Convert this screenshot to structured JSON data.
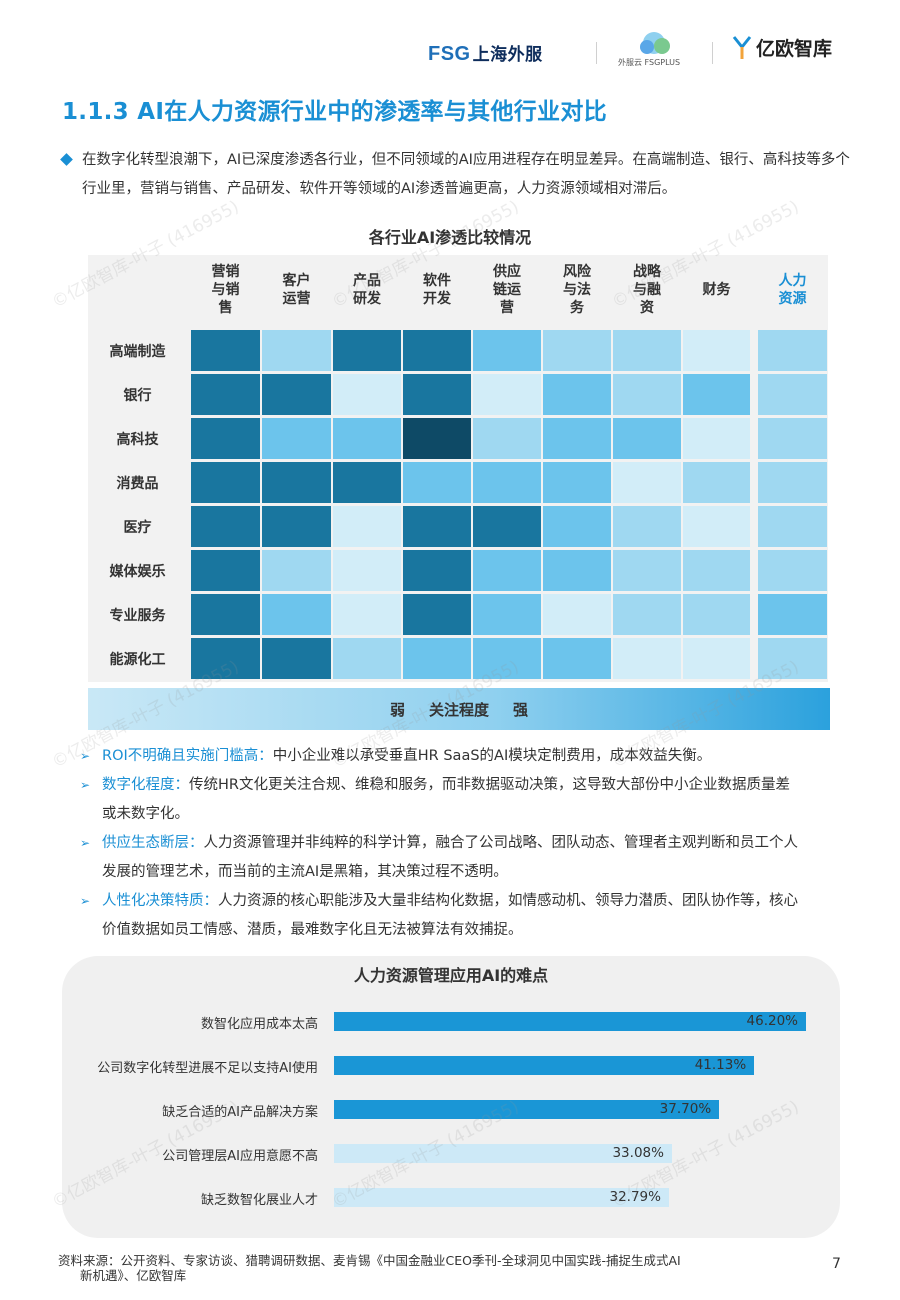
{
  "header": {
    "logo_fsg": "FSG",
    "logo_fsg_cn": "上海外服",
    "logo_plus_text": "外服云 FSGPLUS",
    "logo_yiou": "亿欧智库"
  },
  "title": "1.1.3 AI在人力资源行业中的渗透率与其他行业对比",
  "intro": "在数字化转型浪潮下，AI已深度渗透各行业，但不同领域的AI应用进程存在明显差异。在高端制造、银行、高科技等多个行业里，营销与销售、产品研发、软件开等领域的AI渗透普遍更高，人力资源领域相对滞后。",
  "heatmap": {
    "title": "各行业AI渗透比较情况",
    "columns": [
      "营销\n与销\n售",
      "客户\n运营",
      "产品\n研发",
      "软件\n开发",
      "供应\n链运\n营",
      "风险\n与法\n务",
      "战略\n与融\n资",
      "财务",
      "人力\n资源"
    ],
    "rows": [
      "高端制造",
      "银行",
      "高科技",
      "消费品",
      "医疗",
      "媒体娱乐",
      "专业服务",
      "能源化工"
    ],
    "levels": [
      [
        4,
        2,
        4,
        4,
        3,
        2,
        2,
        1,
        2
      ],
      [
        4,
        4,
        1,
        4,
        1,
        3,
        2,
        3,
        2
      ],
      [
        4,
        3,
        3,
        5,
        2,
        3,
        3,
        1,
        2
      ],
      [
        4,
        4,
        4,
        3,
        3,
        3,
        1,
        2,
        2
      ],
      [
        4,
        4,
        1,
        4,
        4,
        3,
        2,
        1,
        2
      ],
      [
        4,
        2,
        1,
        4,
        3,
        3,
        2,
        2,
        2
      ],
      [
        4,
        3,
        1,
        4,
        3,
        1,
        2,
        2,
        3
      ],
      [
        4,
        4,
        2,
        3,
        3,
        3,
        1,
        1,
        2
      ]
    ],
    "scale_colors": [
      "#f2f2f2",
      "#d2edf8",
      "#9fd8f1",
      "#6cc4ec",
      "#19769f",
      "#0e4a66"
    ],
    "scale_weak": "弱",
    "scale_label": "关注程度",
    "scale_strong": "强"
  },
  "bullets": [
    {
      "key": "ROI不明确且实施门槛高：",
      "text": "中小企业难以承受垂直HR SaaS的AI模块定制费用，成本效益失衡。"
    },
    {
      "key": "数字化程度：",
      "text": "传统HR文化更关注合规、维稳和服务，而非数据驱动决策，这导致大部份中小企业数据质量差或未数字化。"
    },
    {
      "key": "供应生态断层：",
      "text": "人力资源管理并非纯粹的科学计算，融合了公司战略、团队动态、管理者主观判断和员工个人发展的管理艺术，而当前的主流AI是黑箱，其决策过程不透明。"
    },
    {
      "key": "人性化决策特质：",
      "text": "人力资源的核心职能涉及大量非结构化数据，如情感动机、领导力潜质、团队协作等，核心价值数据如员工情感、潜质，最难数字化且无法被算法有效捕捉。"
    }
  ],
  "chart_data": {
    "type": "bar",
    "orientation": "horizontal",
    "title": "人力资源管理应用AI的难点",
    "categories": [
      "数智化应用成本太高",
      "公司数字化转型进展不足以支持AI使用",
      "缺乏合适的AI产品解决方案",
      "公司管理层AI应用意愿不高",
      "缺乏数智化展业人才"
    ],
    "values": [
      46.2,
      41.13,
      37.7,
      33.08,
      32.79
    ],
    "value_labels": [
      "46.20%",
      "41.13%",
      "37.70%",
      "33.08%",
      "32.79%"
    ],
    "xlim": [
      0,
      50
    ],
    "colors": [
      "#1a96d6",
      "#1a96d6",
      "#1a96d6",
      "#cde9f7",
      "#cde9f7"
    ]
  },
  "source": {
    "line1": "资料来源：公开资料、专家访谈、猎聘调研数据、麦肯锡《中国金融业CEO季刊-全球洞见中国实践-捕捉生成式AI",
    "line2": "新机遇》、亿欧智库"
  },
  "page_number": "7",
  "watermark": "©亿欧智库-叶子 (416955)"
}
